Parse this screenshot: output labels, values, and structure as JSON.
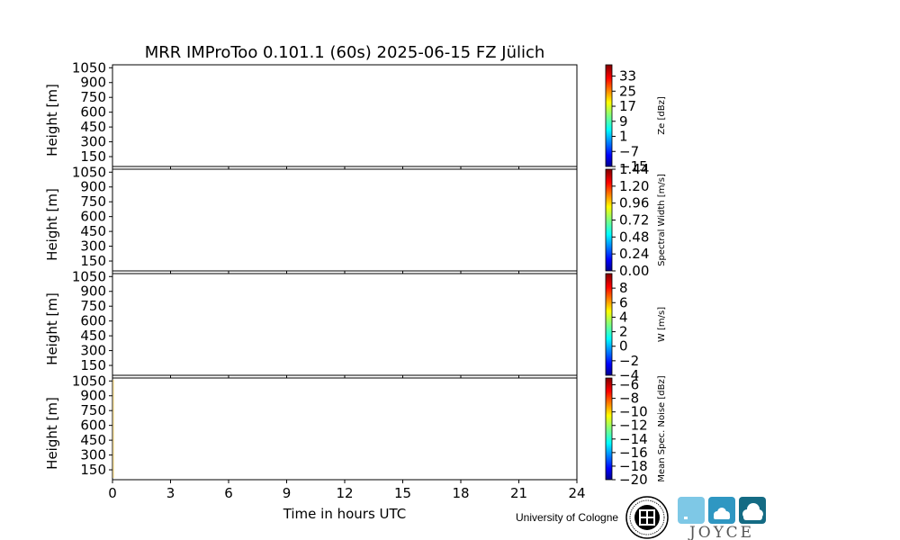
{
  "chart_data": {
    "type": "heatmap",
    "title": "MRR IMProToo 0.101.1 (60s) 2025-06-15 FZ Jülich",
    "xlabel": "Time in hours UTC",
    "xlim": [
      0,
      24
    ],
    "xticks": [
      0,
      3,
      6,
      9,
      12,
      15,
      18,
      21,
      24
    ],
    "ylim": [
      50,
      1080
    ],
    "yticks": [
      150,
      300,
      450,
      600,
      750,
      900,
      1050
    ],
    "grid": false,
    "panels": [
      {
        "ylabel": "Height [m]",
        "colorbar_label": "Ze [dBz]",
        "colorbar_range": [
          -15,
          39
        ],
        "colorbar_ticks": [
          "33",
          "25",
          "17",
          "9",
          "1",
          "−7",
          "−15"
        ],
        "data": []
      },
      {
        "ylabel": "Height [m]",
        "colorbar_label": "Spectral Width [m/s]",
        "colorbar_range": [
          0,
          1.44
        ],
        "colorbar_ticks": [
          "1.44",
          "1.20",
          "0.96",
          "0.72",
          "0.48",
          "0.24",
          "0.00"
        ],
        "data": []
      },
      {
        "ylabel": "Height [m]",
        "colorbar_label": "W [m/s]",
        "colorbar_range": [
          -4,
          10
        ],
        "colorbar_ticks": [
          "8",
          "6",
          "4",
          "2",
          "0",
          "−2",
          "−4"
        ],
        "data": []
      },
      {
        "ylabel": "Height [m]",
        "colorbar_label": "Mean Spec. Noise [dBz]",
        "colorbar_range": [
          -20,
          -5
        ],
        "colorbar_ticks": [
          "−6",
          "−8",
          "−10",
          "−12",
          "−14",
          "−16",
          "−18",
          "−20"
        ],
        "data": []
      }
    ],
    "colormap": [
      "#00008f",
      "#0000ff",
      "#00ffff",
      "#00ff00",
      "#ffff00",
      "#ff8000",
      "#ff0000",
      "#800000"
    ]
  },
  "footer": {
    "institution": "University of Cologne",
    "brand": "JOYCE",
    "tile_colors": [
      "#7ec8e6",
      "#2f97c2",
      "#146b84"
    ]
  }
}
